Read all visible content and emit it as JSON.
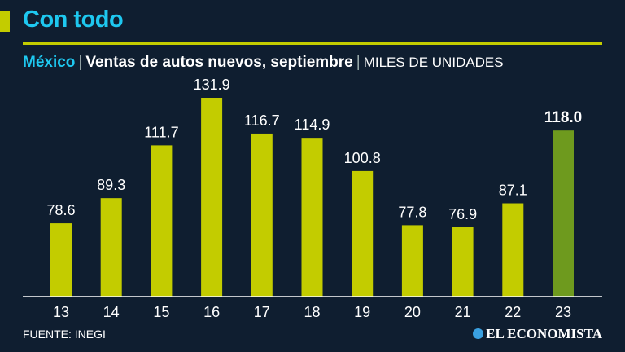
{
  "header": {
    "title": "Con todo",
    "country": "México",
    "subtitle": "Ventas de autos nuevos, septiembre",
    "units": "MILES DE UNIDADES"
  },
  "footer": {
    "source": "FUENTE: INEGI",
    "logo": "EL ECONOMISTA"
  },
  "colors": {
    "bar": "#c3cc00",
    "highlight": "#6e9a1e",
    "title": "#1ec8f0",
    "background": "#0f1e30"
  },
  "chart_data": {
    "type": "bar",
    "title": "Ventas de autos nuevos, septiembre",
    "ylabel": "MILES DE UNIDADES",
    "xlabel": "",
    "categories": [
      "13",
      "14",
      "15",
      "16",
      "17",
      "18",
      "19",
      "20",
      "21",
      "22",
      "23"
    ],
    "values": [
      78.6,
      89.3,
      111.7,
      131.9,
      116.7,
      114.9,
      100.8,
      77.8,
      76.9,
      87.1,
      118.0
    ],
    "labels": [
      "78.6",
      "89.3",
      "111.7",
      "131.9",
      "116.7",
      "114.9",
      "100.8",
      "77.8",
      "76.9",
      "87.1",
      "118.0"
    ],
    "highlight_index": 10,
    "ylim": [
      47.5,
      131.9
    ],
    "grid": false
  }
}
